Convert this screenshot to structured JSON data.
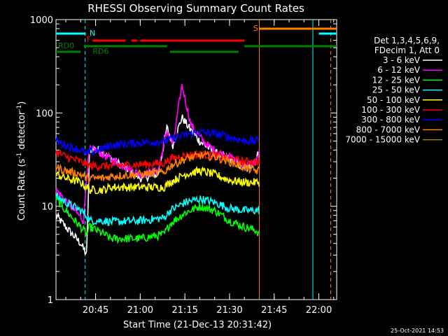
{
  "chart_data": {
    "type": "line",
    "title": "RHESSI Observing Summary Count Rates",
    "xlabel": "Start Time (21-Dec-13 20:31:42)",
    "ylabel_main": "Count Rate (s",
    "ylabel_sup1": "-1",
    "ylabel_mid": " detector",
    "ylabel_sup2": "-1",
    "ylabel_end": ")",
    "y_scale": "log",
    "xlim": [
      "20:31:42",
      "22:06:00"
    ],
    "ylim": [
      1,
      1000
    ],
    "x_ticks": [
      "20:45",
      "21:00",
      "21:15",
      "21:30",
      "21:45",
      "22:00"
    ],
    "y_ticks": [
      "1",
      "10",
      "100",
      "1000"
    ],
    "legend_header": [
      "Det 1,3,4,5,6,9,",
      "FDecim 1, Att 0"
    ],
    "series": [
      {
        "name": "3 - 6 keV",
        "color": "#ffffff",
        "x": [
          "20:31:42",
          "20:35",
          "20:40",
          "20:42",
          "20:43",
          "20:45",
          "20:50",
          "21:00",
          "21:06",
          "21:09",
          "21:11",
          "21:14",
          "21:17",
          "21:20",
          "21:23",
          "21:26",
          "21:30",
          "21:33",
          "21:36",
          "21:39",
          "21:40"
        ],
        "values": [
          8,
          6,
          4,
          3,
          40,
          42,
          33,
          20,
          22,
          70,
          45,
          90,
          65,
          50,
          42,
          36,
          32,
          28,
          25,
          32,
          40
        ]
      },
      {
        "name": "6 - 12 keV",
        "color": "#ff00ff",
        "x": [
          "20:31:42",
          "20:38",
          "20:41",
          "20:42",
          "20:43",
          "20:45",
          "20:50",
          "21:00",
          "21:06",
          "21:09",
          "21:11",
          "21:14",
          "21:17",
          "21:20",
          "21:23",
          "21:26",
          "21:30",
          "21:33",
          "21:36",
          "21:39",
          "21:40"
        ],
        "values": [
          15,
          9,
          7,
          22,
          40,
          40,
          32,
          22,
          24,
          65,
          45,
          200,
          75,
          55,
          44,
          38,
          34,
          30,
          28,
          30,
          38
        ]
      },
      {
        "name": "12 - 25 keV",
        "color": "#00ff00",
        "x": [
          "20:31:42",
          "20:35",
          "20:38",
          "20:40",
          "20:42",
          "20:43",
          "20:48",
          "20:50",
          "21:00",
          "21:08",
          "21:10",
          "21:15",
          "21:20",
          "21:25",
          "21:30",
          "21:35",
          "21:39",
          "21:40"
        ],
        "values": [
          12,
          9,
          7,
          6,
          5,
          6,
          5,
          4.5,
          4.5,
          5,
          6.5,
          8.5,
          10,
          9,
          7,
          6,
          5.5,
          5
        ]
      },
      {
        "name": "25 - 50 keV",
        "color": "#00ffff",
        "x": [
          "20:31:42",
          "20:35",
          "20:40",
          "20:42",
          "20:43",
          "20:48",
          "20:50",
          "21:00",
          "21:08",
          "21:10",
          "21:15",
          "21:20",
          "21:25",
          "21:30",
          "21:35",
          "21:39",
          "21:40"
        ],
        "values": [
          13,
          11,
          9,
          8,
          7,
          7,
          6.8,
          7,
          7.5,
          9,
          11,
          12,
          11,
          9.5,
          9,
          9,
          9
        ]
      },
      {
        "name": "50 - 100 keV",
        "color": "#ffff00",
        "x": [
          "20:31:42",
          "20:35",
          "20:40",
          "20:42",
          "20:43",
          "20:48",
          "20:50",
          "21:00",
          "21:08",
          "21:10",
          "21:15",
          "21:20",
          "21:25",
          "21:30",
          "21:35",
          "21:39",
          "21:40"
        ],
        "values": [
          22,
          20,
          18,
          16,
          15,
          15,
          16,
          16,
          16,
          18,
          22,
          24,
          22,
          19,
          18,
          18,
          18
        ]
      },
      {
        "name": "100 - 300 keV",
        "color": "#ff0000",
        "x": [
          "20:31:42",
          "20:35",
          "20:40",
          "20:42",
          "20:43",
          "20:48",
          "20:50",
          "21:00",
          "21:08",
          "21:10",
          "21:15",
          "21:20",
          "21:25",
          "21:30",
          "21:35",
          "21:39",
          "21:40"
        ],
        "values": [
          38,
          34,
          30,
          28,
          27,
          27,
          27,
          28,
          29,
          32,
          35,
          36,
          35,
          32,
          30,
          30,
          30
        ]
      },
      {
        "name": "300 - 800 keV",
        "color": "#0000ff",
        "x": [
          "20:31:42",
          "20:35",
          "20:40",
          "20:42",
          "20:43",
          "20:48",
          "20:50",
          "21:00",
          "21:08",
          "21:10",
          "21:15",
          "21:20",
          "21:25",
          "21:30",
          "21:35",
          "21:39",
          "21:40"
        ],
        "values": [
          50,
          45,
          40,
          36,
          38,
          42,
          45,
          48,
          50,
          52,
          58,
          62,
          60,
          55,
          50,
          50,
          52
        ]
      },
      {
        "name": "800 - 7000 keV",
        "color": "#ff8000",
        "x": [
          "20:31:42",
          "20:35",
          "20:40",
          "20:42",
          "20:43",
          "20:48",
          "20:50",
          "21:00",
          "21:08",
          "21:10",
          "21:15",
          "21:20",
          "21:25",
          "21:30",
          "21:35",
          "21:39",
          "21:40"
        ],
        "values": [
          26,
          24,
          22,
          20,
          20,
          20,
          21,
          22,
          23,
          27,
          32,
          35,
          34,
          30,
          26,
          24,
          24
        ]
      },
      {
        "name": "7000 - 15000 keV",
        "color": "#a08000",
        "x": [],
        "values": []
      }
    ],
    "flag_bars": [
      {
        "label": "N",
        "color": "#00ffff",
        "segments": [
          [
            "20:31:42",
            "20:41:30"
          ],
          [
            "22:00",
            "22:06"
          ]
        ]
      },
      {
        "label": "F",
        "color": "#ff0000",
        "segments": [
          [
            "20:44",
            "20:55"
          ],
          [
            "20:57",
            "20:59"
          ],
          [
            "21:00",
            "21:35"
          ]
        ]
      },
      {
        "label": "S",
        "color": "#ff8000",
        "segments": [
          [
            "21:40",
            "22:06"
          ]
        ]
      },
      {
        "label": "RD0",
        "color": "#008000",
        "segments": [
          [
            "20:41",
            "21:09"
          ],
          [
            "21:35",
            "22:06"
          ]
        ]
      },
      {
        "label": "RD6",
        "color": "#008000",
        "segments": [
          [
            "20:31:42",
            "20:40"
          ],
          [
            "21:10",
            "21:33"
          ]
        ]
      }
    ],
    "vlines": [
      {
        "time": "20:41:30",
        "color": "#00ffff",
        "style": "dashed"
      },
      {
        "time": "21:40",
        "color": "#ff8000",
        "style": "solid"
      },
      {
        "time": "21:58",
        "color": "#00ffff",
        "style": "solid"
      },
      {
        "time": "22:04",
        "color": "#ff8000",
        "style": "dashed"
      }
    ],
    "timestamp": "25-Oct-2021 14:53",
    "grid": false,
    "legend_position": "right"
  }
}
